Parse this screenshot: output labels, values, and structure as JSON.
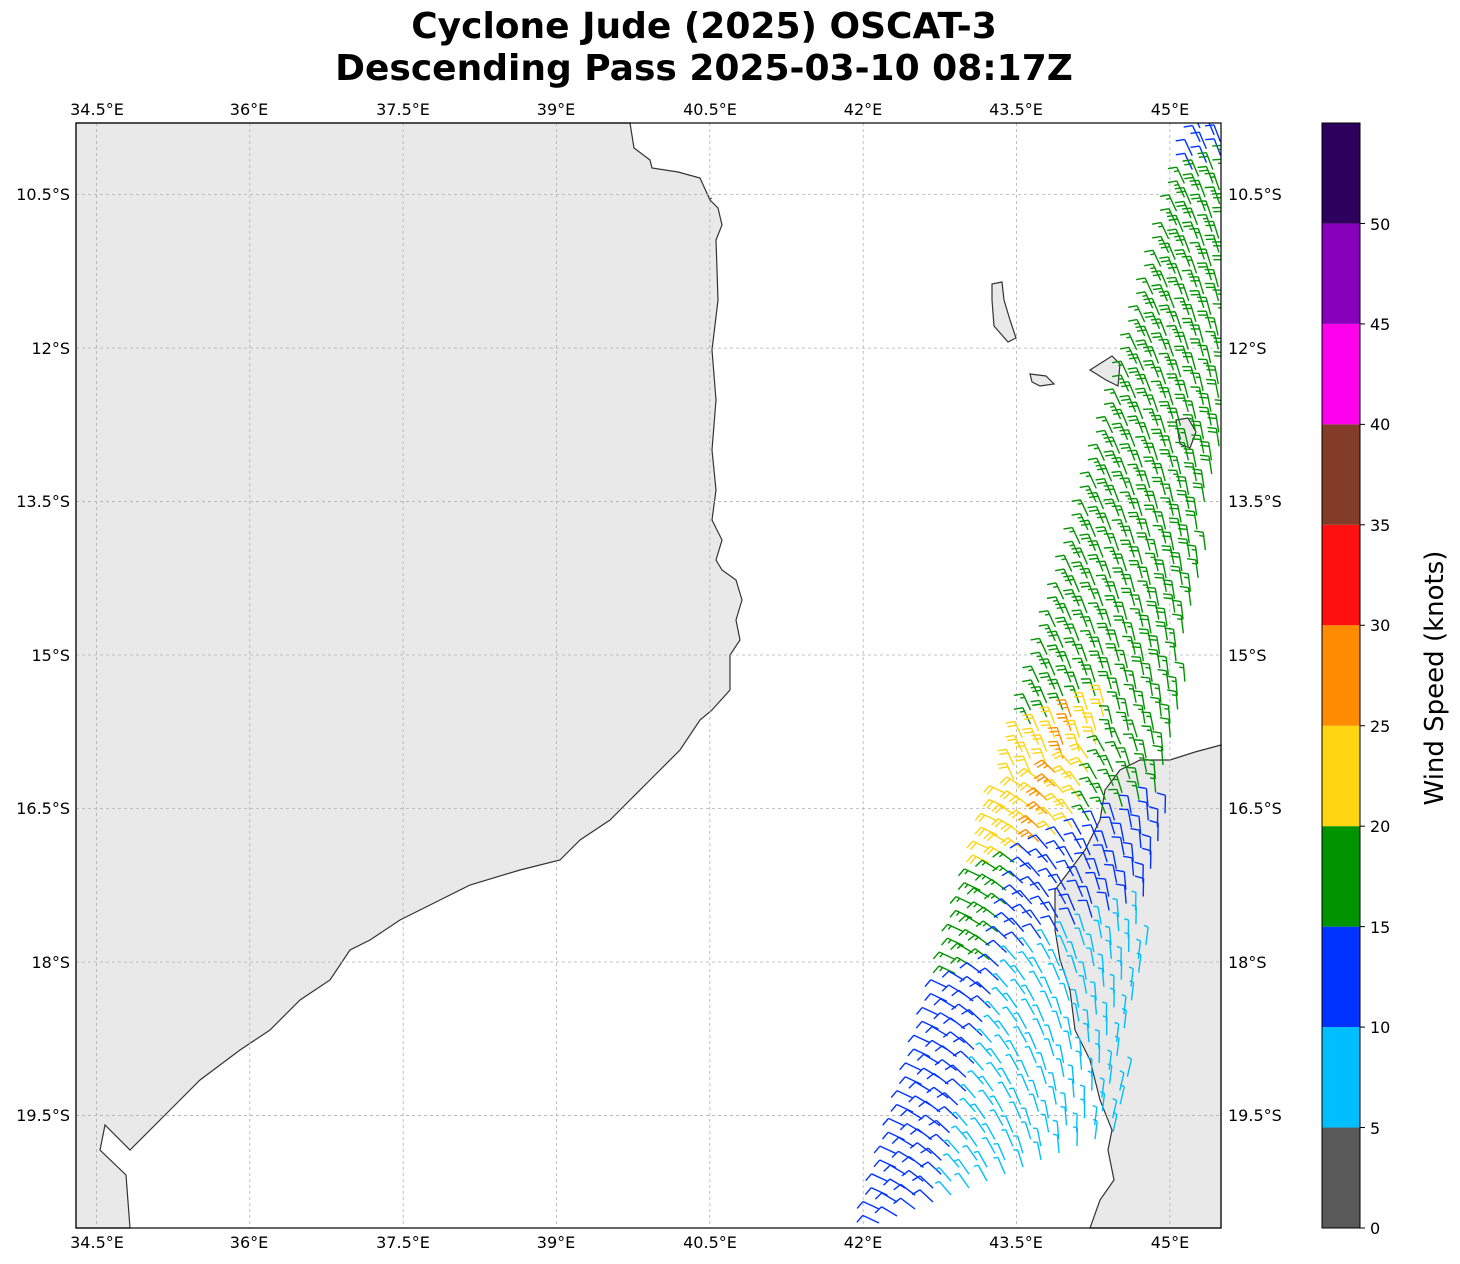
{
  "title": {
    "line1": "Cyclone Jude (2025) OSCAT-3",
    "line2": "Descending Pass 2025-03-10 08:17Z"
  },
  "map": {
    "lon_range": [
      34.3,
      45.5
    ],
    "lat_range": [
      -20.6,
      -9.8
    ],
    "lon_ticks": [
      {
        "value": 34.5,
        "label": "34.5°E"
      },
      {
        "value": 36.0,
        "label": "36°E"
      },
      {
        "value": 37.5,
        "label": "37.5°E"
      },
      {
        "value": 39.0,
        "label": "39°E"
      },
      {
        "value": 40.5,
        "label": "40.5°E"
      },
      {
        "value": 42.0,
        "label": "42°E"
      },
      {
        "value": 43.5,
        "label": "43.5°E"
      },
      {
        "value": 45.0,
        "label": "45°E"
      }
    ],
    "lat_ticks": [
      {
        "value": -10.5,
        "label": "10.5°S"
      },
      {
        "value": -12.0,
        "label": "12°S"
      },
      {
        "value": -13.5,
        "label": "13.5°S"
      },
      {
        "value": -15.0,
        "label": "15°S"
      },
      {
        "value": -16.5,
        "label": "16.5°S"
      },
      {
        "value": -18.0,
        "label": "18°S"
      },
      {
        "value": -19.5,
        "label": "19.5°S"
      }
    ],
    "colors": {
      "land": "#e9e9e9",
      "land_dark": "#cfcfcf",
      "coast": "#333333",
      "grid": "#b0b0b0"
    }
  },
  "colorbar": {
    "title": "Wind Speed (knots)",
    "bins": [
      {
        "min": 0,
        "max": 5,
        "color": "#595959"
      },
      {
        "min": 5,
        "max": 10,
        "color": "#00bfff"
      },
      {
        "min": 10,
        "max": 15,
        "color": "#0033ff"
      },
      {
        "min": 15,
        "max": 20,
        "color": "#009400"
      },
      {
        "min": 20,
        "max": 25,
        "color": "#ffd410"
      },
      {
        "min": 25,
        "max": 30,
        "color": "#ff8c00"
      },
      {
        "min": 30,
        "max": 35,
        "color": "#ff1010"
      },
      {
        "min": 35,
        "max": 40,
        "color": "#833c28"
      },
      {
        "min": 40,
        "max": 45,
        "color": "#ff00ee"
      },
      {
        "min": 45,
        "max": 50,
        "color": "#8800bb"
      },
      {
        "min": 50,
        "max": 55,
        "color": "#2d005e"
      }
    ],
    "tick_labels": [
      "0",
      "5",
      "10",
      "15",
      "20",
      "25",
      "30",
      "35",
      "40",
      "45",
      "50"
    ]
  }
}
